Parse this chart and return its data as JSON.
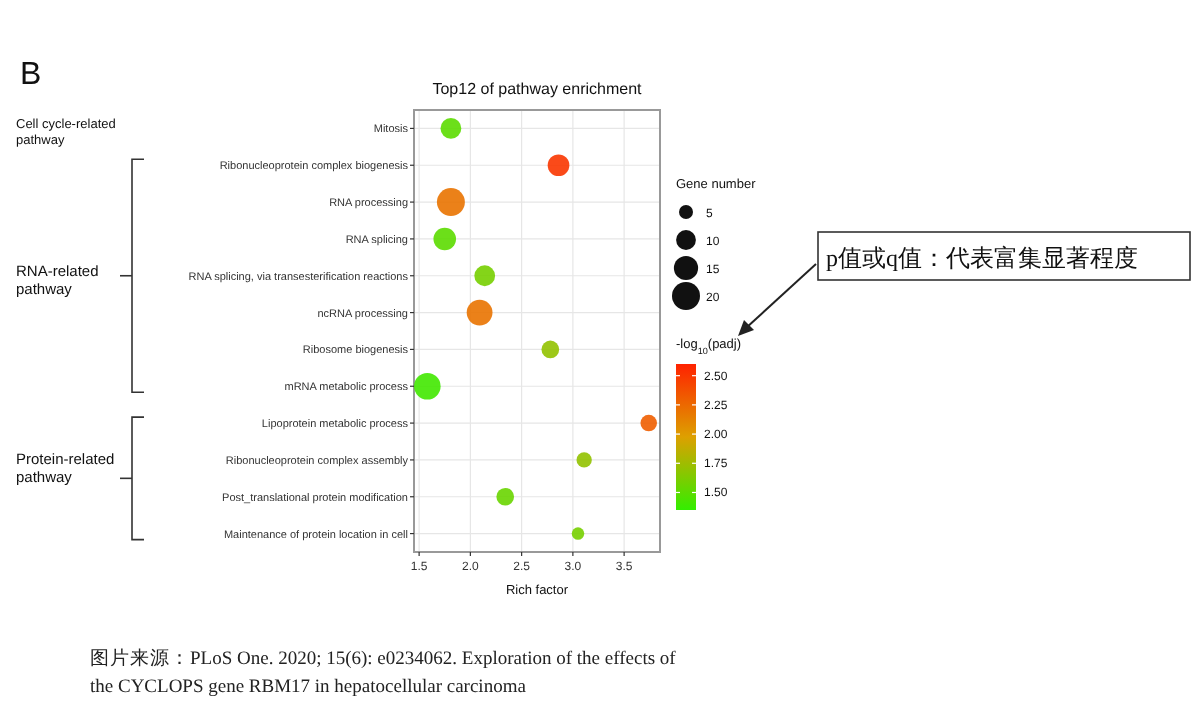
{
  "chart_data": {
    "type": "bubble",
    "title": "Top12 of pathway enrichment",
    "xlabel": "Rich factor",
    "categories": [
      "Mitosis",
      "Ribonucleoprotein complex biogenesis",
      "RNA processing",
      "RNA splicing",
      "RNA splicing, via transesterification reactions",
      "ncRNA processing",
      "Ribosome biogenesis",
      "mRNA metabolic process",
      "Lipoprotein metabolic process",
      "Ribonucleoprotein complex assembly",
      "Post_translational protein modification",
      "Maintenance of protein location in cell"
    ],
    "values": [
      1.81,
      2.86,
      1.81,
      1.75,
      2.14,
      2.09,
      2.78,
      1.58,
      3.74,
      3.11,
      2.34,
      3.05
    ],
    "sizes": [
      11,
      12,
      20,
      13,
      11,
      17,
      8,
      18,
      7,
      6,
      8,
      4
    ],
    "cvalues": [
      1.5,
      2.5,
      2.2,
      1.5,
      1.6,
      2.2,
      1.7,
      1.4,
      2.3,
      1.7,
      1.55,
      1.6
    ],
    "size_legend": [
      {
        "value": 5,
        "label": "5"
      },
      {
        "value": 10,
        "label": "10"
      },
      {
        "value": 15,
        "label": "15"
      },
      {
        "value": 20,
        "label": "20"
      }
    ],
    "orientation": "horizontal",
    "legend_title": "Gene number",
    "clabel": "-log$_{10}$(padj)",
    "clim": [
      1.35,
      2.6
    ],
    "cticks": [
      {
        "value": 1.5,
        "label": "1.50"
      },
      {
        "value": 1.75,
        "label": "1.75"
      },
      {
        "value": 2.0,
        "label": "2.00"
      },
      {
        "value": 2.25,
        "label": "2.25"
      },
      {
        "value": 2.5,
        "label": "2.50"
      }
    ],
    "xlim": [
      1.45,
      3.85
    ],
    "xticks": [
      {
        "value": 1.5,
        "label": "1.5"
      },
      {
        "value": 2.0,
        "label": "2.0"
      },
      {
        "value": 2.5,
        "label": "2.5"
      },
      {
        "value": 3.0,
        "label": "3.0"
      },
      {
        "value": 3.5,
        "label": "3.5"
      }
    ],
    "grid": true,
    "annotations": [
      "B",
      "Cell cycle-related pathway",
      "RNA-related pathway",
      "Protein-related pathway",
      "p值或q值：代表富集显著程度",
      "图片来源：PLoS One. 2020; 15(6): e0234062. Exploration of the effects of the CYCLOPS gene RBM17 in hepatocellular carcinoma"
    ]
  }
}
